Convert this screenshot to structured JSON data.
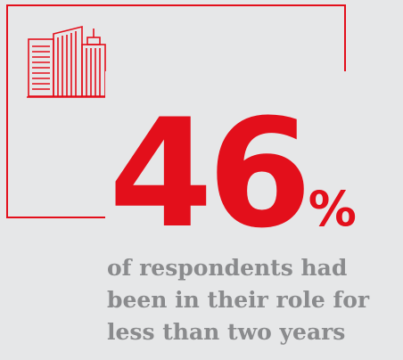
{
  "stat": {
    "value": "46",
    "unit": "%"
  },
  "caption": {
    "lines": [
      "of respondents had",
      "been in their role for",
      "less than two years"
    ]
  },
  "icon": {
    "name": "office-buildings-icon"
  },
  "colors": {
    "accent": "#e30f1b",
    "background": "#e6e7e8",
    "text": "#8a8b8d"
  }
}
